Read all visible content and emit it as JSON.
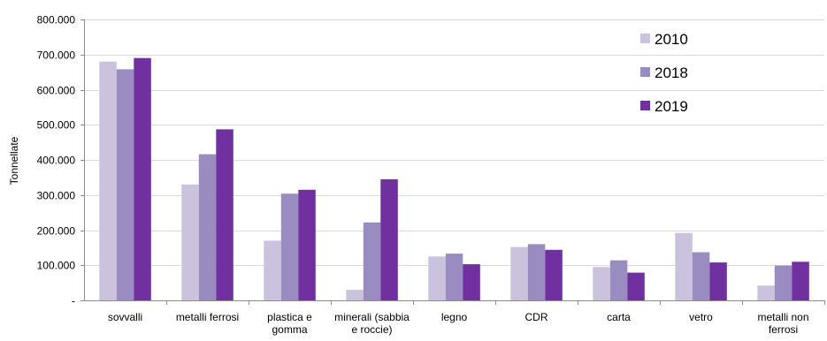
{
  "chart_data": {
    "type": "bar",
    "title": "",
    "xlabel": "",
    "ylabel": "Tonnellate",
    "ylim": [
      0,
      800000
    ],
    "yticks": [
      {
        "value": 0,
        "label": "-"
      },
      {
        "value": 100000,
        "label": "100.000"
      },
      {
        "value": 200000,
        "label": "200.000"
      },
      {
        "value": 300000,
        "label": "300.000"
      },
      {
        "value": 400000,
        "label": "400.000"
      },
      {
        "value": 500000,
        "label": "500.000"
      },
      {
        "value": 600000,
        "label": "600.000"
      },
      {
        "value": 700000,
        "label": "700.000"
      },
      {
        "value": 800000,
        "label": "800.000"
      }
    ],
    "categories": [
      [
        "sovvalli"
      ],
      [
        "metalli ferrosi"
      ],
      [
        "plastica e",
        "gomma"
      ],
      [
        "minerali (sabbia",
        "e roccie)"
      ],
      [
        "legno"
      ],
      [
        "CDR"
      ],
      [
        "carta"
      ],
      [
        "vetro"
      ],
      [
        "metalli non",
        "ferrosi"
      ]
    ],
    "series": [
      {
        "name": "2010",
        "color": "#cbc3de",
        "values": [
          680000,
          330000,
          170000,
          30000,
          125000,
          152000,
          95000,
          192000,
          42000
        ]
      },
      {
        "name": "2018",
        "color": "#9a8bc0",
        "values": [
          658000,
          416000,
          304000,
          222000,
          133000,
          160000,
          114000,
          137000,
          99000
        ]
      },
      {
        "name": "2019",
        "color": "#7030a0",
        "values": [
          690000,
          487000,
          315000,
          345000,
          103000,
          144000,
          79000,
          108000,
          110000
        ]
      }
    ],
    "grid": true,
    "legend_position": "top-right"
  }
}
